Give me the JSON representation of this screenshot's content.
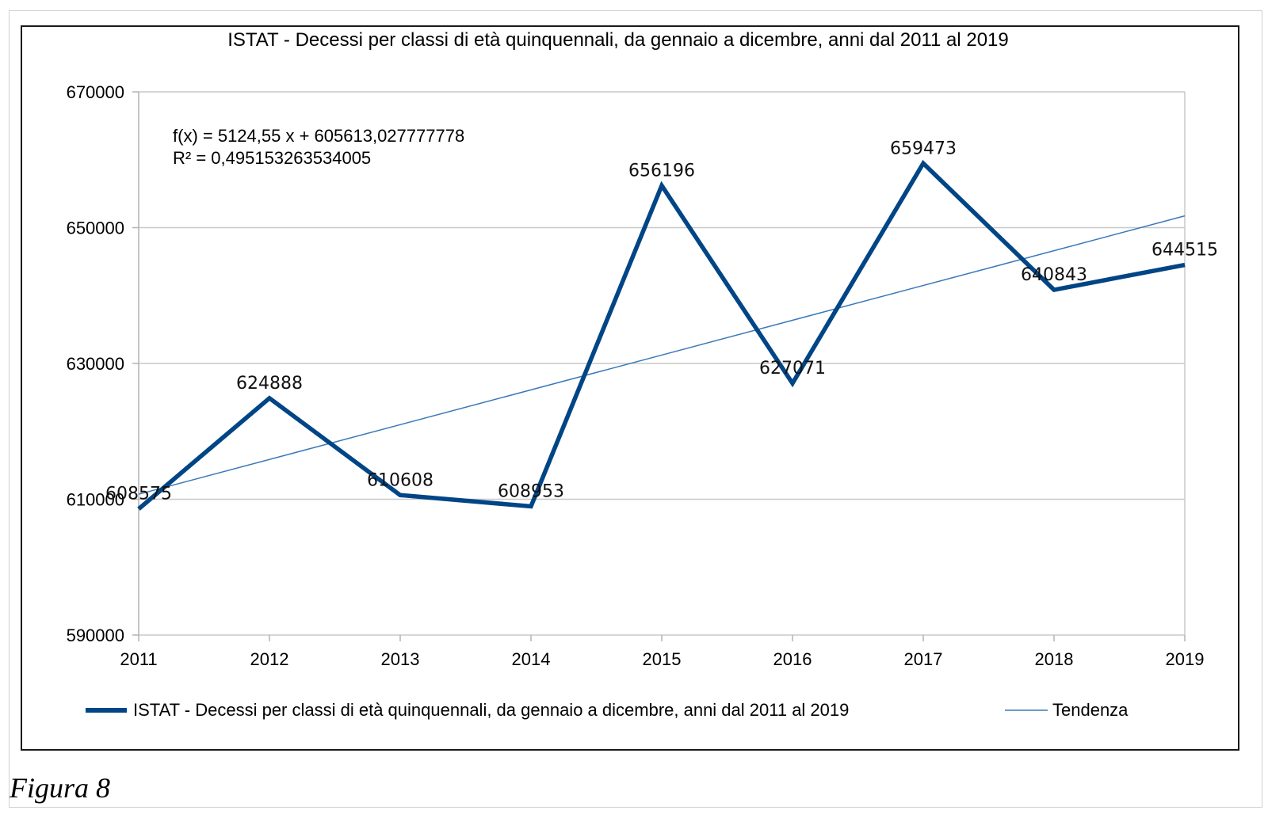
{
  "figure_caption": "Figura 8",
  "colors": {
    "series": "#004586",
    "trend": "#3a79b8",
    "grid": "#c8c8c8",
    "axis": "#b3b3b3"
  },
  "chart_data": {
    "type": "line",
    "title": "ISTAT - Decessi per classi di età quinquennali, da gennaio a dicembre, anni dal 2011 al 2019",
    "xlabel": "",
    "ylabel": "",
    "categories": [
      "2011",
      "2012",
      "2013",
      "2014",
      "2015",
      "2016",
      "2017",
      "2018",
      "2019"
    ],
    "series": [
      {
        "name": "ISTAT - Decessi per classi di età quinquennali, da gennaio a dicembre, anni dal 2011 al 2019",
        "values": [
          608575,
          624888,
          610608,
          608953,
          656196,
          627071,
          659473,
          640843,
          644515
        ],
        "data_labels": [
          "608575",
          "624888",
          "610608",
          "608953",
          "656196",
          "627071",
          "659473",
          "640843",
          "644515"
        ]
      }
    ],
    "trendline": {
      "name": "Tendenza",
      "type": "linear",
      "slope": 5124.55,
      "intercept": 605613.027777778,
      "equation": "f(x) = 5124,55 x + 605613,027777778",
      "r_squared": "R² = 0,495153263534005"
    },
    "ylim": [
      590000,
      670000
    ],
    "yticks": [
      590000,
      610000,
      630000,
      650000,
      670000
    ],
    "ytick_labels": [
      "590000",
      "610000",
      "630000",
      "650000",
      "670000"
    ],
    "grid": true,
    "legend": "bottom"
  }
}
